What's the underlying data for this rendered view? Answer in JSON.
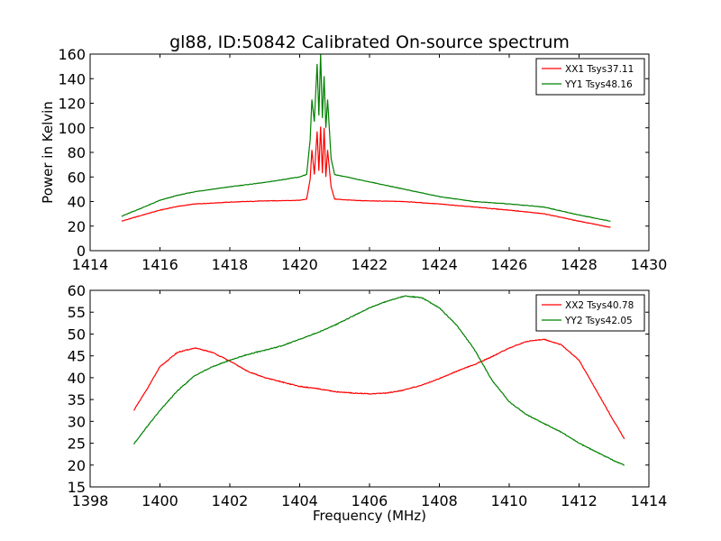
{
  "title": "gl88, ID:50842 Calibrated On-source spectrum",
  "chart_data": [
    {
      "type": "line",
      "title": "gl88, ID:50842 Calibrated On-source spectrum",
      "xlabel": "",
      "ylabel": "Power in Kelvin",
      "xlim": [
        1414,
        1430
      ],
      "ylim": [
        0,
        160
      ],
      "xticks": [
        "1414",
        "1416",
        "1418",
        "1420",
        "1422",
        "1424",
        "1426",
        "1428",
        "1430"
      ],
      "yticks": [
        "0",
        "20",
        "40",
        "60",
        "80",
        "100",
        "120",
        "140",
        "160"
      ],
      "legend_position": "top-right",
      "grid": false,
      "series": [
        {
          "name": "XX1 Tsys37.11",
          "color": "#ff0000",
          "x": [
            1414.9,
            1415.5,
            1416.0,
            1416.5,
            1417.0,
            1418.0,
            1419.0,
            1420.0,
            1420.2,
            1420.3,
            1420.35,
            1420.42,
            1420.5,
            1420.55,
            1420.6,
            1420.65,
            1420.7,
            1420.75,
            1420.8,
            1420.9,
            1421.0,
            1421.5,
            1422.0,
            1423.0,
            1424.0,
            1425.0,
            1426.0,
            1427.0,
            1428.0,
            1428.9
          ],
          "y": [
            24,
            29,
            33,
            36,
            38,
            39.5,
            40.5,
            41,
            42,
            58,
            82,
            62,
            97,
            65,
            101,
            63,
            100,
            60,
            82,
            52,
            42,
            41,
            40.5,
            40,
            38,
            35.5,
            33,
            30,
            24,
            19
          ]
        },
        {
          "name": "YY1 Tsys48.16",
          "color": "#008000",
          "x": [
            1414.9,
            1415.5,
            1416.0,
            1416.5,
            1417.0,
            1418.0,
            1419.0,
            1420.0,
            1420.2,
            1420.3,
            1420.35,
            1420.42,
            1420.5,
            1420.55,
            1420.6,
            1420.65,
            1420.7,
            1420.75,
            1420.8,
            1420.9,
            1421.0,
            1421.5,
            1422.0,
            1423.0,
            1424.0,
            1425.0,
            1426.0,
            1427.0,
            1428.0,
            1428.9
          ],
          "y": [
            28,
            35,
            41,
            45,
            48,
            52,
            55.5,
            60,
            62,
            90,
            123,
            105,
            152,
            110,
            160,
            108,
            142,
            100,
            123,
            75,
            62,
            59,
            56,
            50,
            44,
            40,
            38,
            35.5,
            29,
            24
          ]
        }
      ]
    },
    {
      "type": "line",
      "title": "",
      "xlabel": "Frequency (MHz)",
      "ylabel": "",
      "xlim": [
        1398,
        1414
      ],
      "ylim": [
        15,
        60
      ],
      "xticks": [
        "1398",
        "1400",
        "1402",
        "1404",
        "1406",
        "1408",
        "1410",
        "1412",
        "1414"
      ],
      "yticks": [
        "15",
        "20",
        "25",
        "30",
        "35",
        "40",
        "45",
        "50",
        "55",
        "60"
      ],
      "legend_position": "top-right",
      "grid": false,
      "series": [
        {
          "name": "XX2 Tsys40.78",
          "color": "#ff0000",
          "x": [
            1399.25,
            1399.6,
            1400.0,
            1400.5,
            1401.0,
            1401.5,
            1402.0,
            1402.5,
            1403.0,
            1403.5,
            1404.0,
            1404.5,
            1405.0,
            1405.5,
            1406.0,
            1406.5,
            1407.0,
            1407.5,
            1408.0,
            1408.5,
            1409.0,
            1409.5,
            1410.0,
            1410.5,
            1411.0,
            1411.5,
            1412.0,
            1412.5,
            1413.0,
            1413.3
          ],
          "y": [
            32.5,
            37,
            42.5,
            45.8,
            46.8,
            45.8,
            43.8,
            41.5,
            40,
            39,
            38,
            37.5,
            36.8,
            36.5,
            36.3,
            36.5,
            37.2,
            38.3,
            39.8,
            41.5,
            43,
            44.8,
            46.8,
            48.3,
            48.8,
            47.5,
            44,
            37,
            30,
            26
          ]
        },
        {
          "name": "YY2 Tsys42.05",
          "color": "#008000",
          "x": [
            1399.25,
            1399.6,
            1400.0,
            1400.5,
            1401.0,
            1401.5,
            1402.0,
            1402.5,
            1403.0,
            1403.5,
            1404.0,
            1404.5,
            1405.0,
            1405.5,
            1406.0,
            1406.5,
            1407.0,
            1407.5,
            1408.0,
            1408.5,
            1409.0,
            1409.5,
            1410.0,
            1410.5,
            1411.0,
            1411.5,
            1412.0,
            1412.5,
            1413.0,
            1413.3
          ],
          "y": [
            24.8,
            28.5,
            32.5,
            37,
            40.5,
            42.5,
            44,
            45.3,
            46.3,
            47.3,
            48.8,
            50.3,
            52,
            54,
            56,
            57.5,
            58.7,
            58.3,
            56,
            52,
            46.5,
            39.5,
            34.5,
            31.5,
            29.5,
            27.5,
            25,
            23,
            21,
            20
          ]
        }
      ]
    }
  ]
}
